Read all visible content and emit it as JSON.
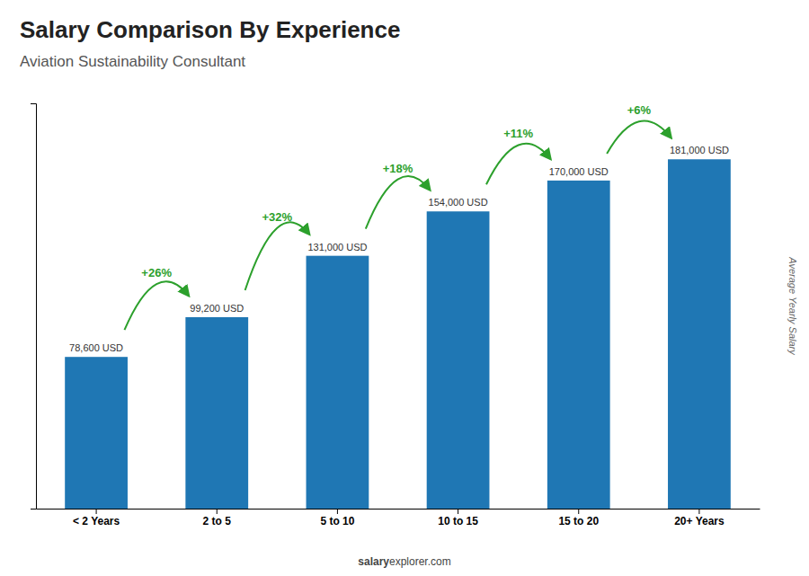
{
  "chart_data": {
    "type": "bar",
    "title": "Salary Comparison By Experience",
    "subtitle": "Aviation Sustainability Consultant",
    "y_label": "Average Yearly Salary",
    "categories": [
      "< 2 Years",
      "2 to 5",
      "5 to 10",
      "10 to 15",
      "15 to 20",
      "20+ Years"
    ],
    "values": [
      78600,
      99200,
      131000,
      154000,
      170000,
      181000
    ],
    "value_labels": [
      "78,600 USD",
      "99,200 USD",
      "131,000 USD",
      "154,000 USD",
      "170,000 USD",
      "181,000 USD"
    ],
    "data_labels": true,
    "annotations": [
      "+26%",
      "+32%",
      "+18%",
      "+11%",
      "+6%"
    ],
    "footer": [
      "salary",
      "explorer.com"
    ],
    "ylim": [
      0,
      210000
    ],
    "yticks": [],
    "grid": false,
    "tick_labels": "x"
  }
}
